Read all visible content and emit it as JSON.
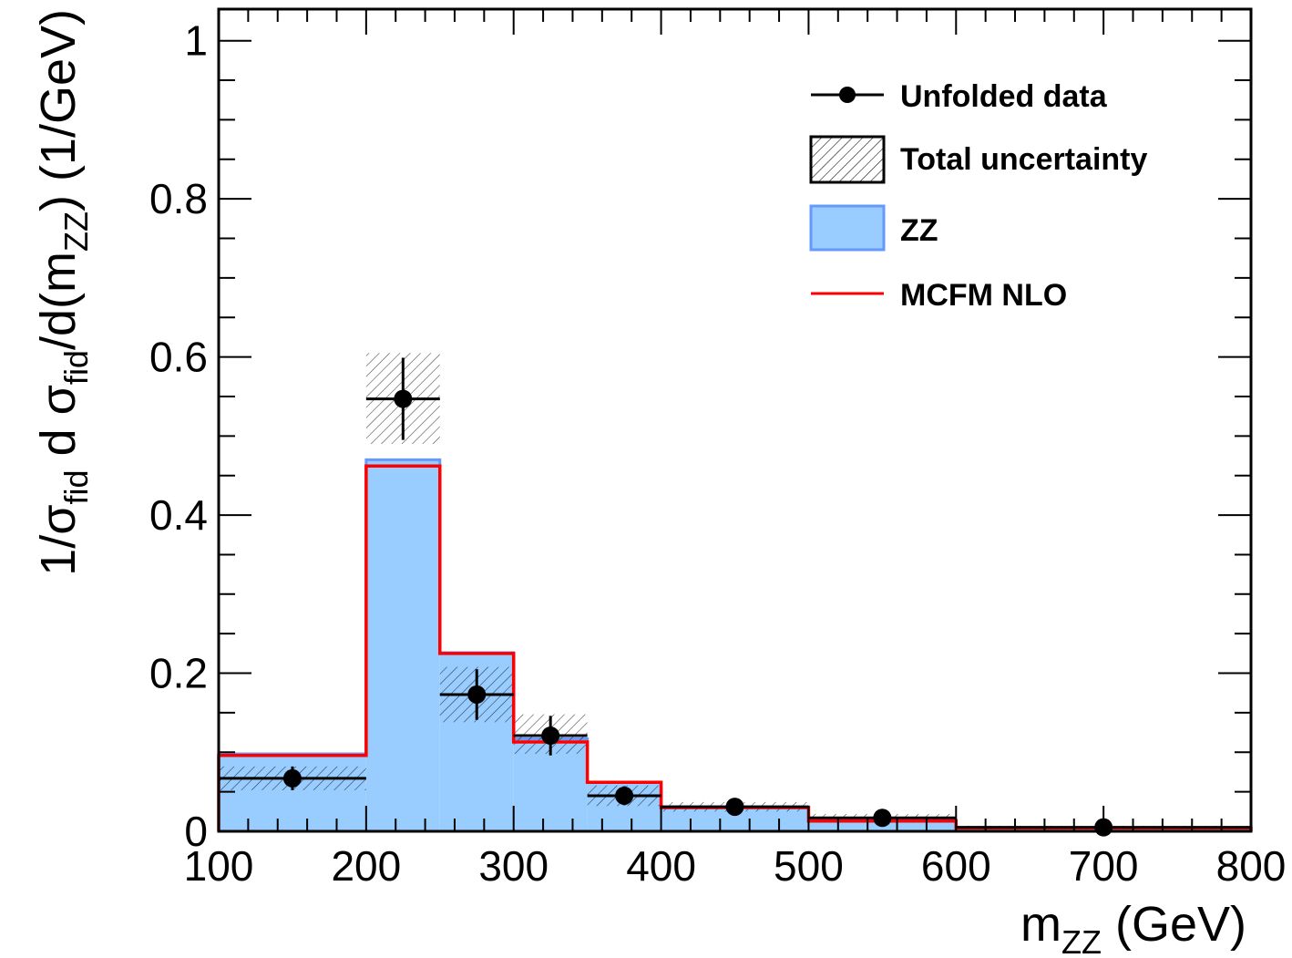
{
  "chart_data": {
    "type": "histogram",
    "xlabel": {
      "main": "m",
      "sub": "ZZ",
      "unit": " (GeV)"
    },
    "ylabel": {
      "p1": "1/σ",
      "p1sub": "fid",
      "p2": " d σ",
      "p2sub": "fid",
      "p3": "/d(m",
      "p3sub": "ZZ",
      "p4": ") (1/GeV)"
    },
    "xlim": [
      100,
      800
    ],
    "ylim": [
      0,
      1.04
    ],
    "x_ticks": [
      100,
      200,
      300,
      400,
      500,
      600,
      700,
      800
    ],
    "x_tick_labels": [
      "100",
      "200",
      "300",
      "400",
      "500",
      "600",
      "700",
      "800"
    ],
    "y_ticks": [
      0,
      0.2,
      0.4,
      0.6,
      0.8,
      1
    ],
    "y_tick_labels": [
      "0",
      "0.2",
      "0.4",
      "0.6",
      "0.8",
      "1"
    ],
    "bins": [
      [
        100,
        200
      ],
      [
        200,
        250
      ],
      [
        250,
        300
      ],
      [
        300,
        350
      ],
      [
        350,
        400
      ],
      [
        400,
        500
      ],
      [
        500,
        600
      ],
      [
        600,
        800
      ]
    ],
    "series": [
      {
        "name": "ZZ",
        "values": [
          0.098,
          0.47,
          0.226,
          0.117,
          0.062,
          0.031,
          0.014,
          0.004
        ],
        "color": "#99ccff",
        "edge": "#6699ff"
      },
      {
        "name": "MCFM NLO",
        "values": [
          0.096,
          0.462,
          0.225,
          0.113,
          0.062,
          0.03,
          0.013,
          0.004
        ],
        "color": "#ff0000"
      },
      {
        "name": "Unfolded data",
        "x": [
          150,
          225,
          275,
          325,
          375,
          450,
          550,
          700
        ],
        "values": [
          0.067,
          0.547,
          0.173,
          0.121,
          0.045,
          0.031,
          0.017,
          0.005
        ],
        "err": [
          0.015,
          0.052,
          0.032,
          0.025,
          0.012,
          0.005,
          0.004,
          0.002
        ],
        "color": "#000000"
      },
      {
        "name": "Total uncertainty",
        "lo": [
          0.052,
          0.49,
          0.138,
          0.098,
          0.032,
          0.025,
          0.012,
          0.003
        ],
        "hi": [
          0.082,
          0.605,
          0.208,
          0.148,
          0.058,
          0.037,
          0.022,
          0.007
        ]
      }
    ],
    "legend": {
      "position": "top-right",
      "entries": [
        "Unfolded data",
        "Total uncertainty",
        "ZZ",
        "MCFM NLO"
      ]
    },
    "grid": false
  }
}
